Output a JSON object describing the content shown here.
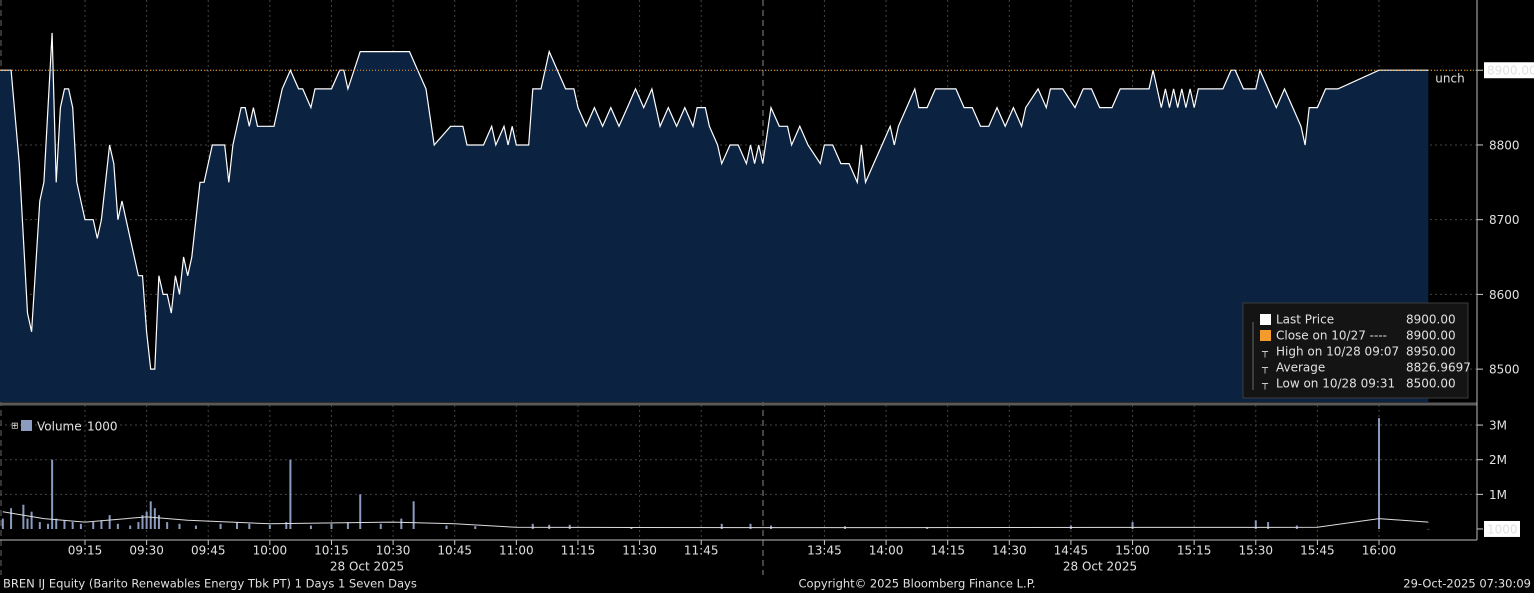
{
  "chart_data": [
    {
      "type": "area",
      "x": [
        "08:54",
        "08:57",
        "08:59",
        "09:01",
        "09:02",
        "09:04",
        "09:05",
        "09:07",
        "09:08",
        "09:09",
        "09:10",
        "09:11",
        "09:12",
        "09:13",
        "09:14",
        "09:15",
        "09:17",
        "09:18",
        "09:19",
        "09:21",
        "09:22",
        "09:23",
        "09:24",
        "09:25",
        "09:27",
        "09:28",
        "09:29",
        "09:30",
        "09:31",
        "09:32",
        "09:33",
        "09:34",
        "09:35",
        "09:36",
        "09:37",
        "09:38",
        "09:39",
        "09:40",
        "09:41",
        "09:42",
        "09:43",
        "09:44",
        "09:45",
        "09:46",
        "09:47",
        "09:48",
        "09:49",
        "09:50",
        "09:51",
        "09:52",
        "09:53",
        "09:54",
        "09:55",
        "09:56",
        "09:57",
        "09:58",
        "10:01",
        "10:03",
        "10:05",
        "10:07",
        "10:08",
        "10:10",
        "10:11",
        "10:15",
        "10:17",
        "10:18",
        "10:19",
        "10:22",
        "10:34",
        "10:36",
        "10:38",
        "10:40",
        "10:44",
        "10:47",
        "10:48",
        "10:52",
        "10:54",
        "10:55",
        "10:57",
        "10:58",
        "10:59",
        "11:00",
        "11:03",
        "11:04",
        "11:06",
        "11:08",
        "11:10",
        "11:12",
        "11:14",
        "11:15",
        "11:17",
        "11:19",
        "11:21",
        "11:23",
        "11:25",
        "11:27",
        "11:29",
        "11:31",
        "11:33",
        "11:35",
        "11:37",
        "11:39",
        "11:41",
        "11:43",
        "11:44",
        "11:46",
        "11:47",
        "11:49",
        "11:50",
        "11:52",
        "11:54",
        "11:56",
        "11:57",
        "11:58",
        "11:59",
        "13:30",
        "13:32",
        "13:34",
        "13:36",
        "13:37",
        "13:39",
        "13:41",
        "13:44",
        "13:45",
        "13:47",
        "13:49",
        "13:51",
        "13:53",
        "13:54",
        "13:55",
        "13:57",
        "13:59",
        "14:01",
        "14:02",
        "14:03",
        "14:05",
        "14:07",
        "14:08",
        "14:10",
        "14:12",
        "14:17",
        "14:19",
        "14:21",
        "14:23",
        "14:25",
        "14:27",
        "14:29",
        "14:31",
        "14:33",
        "14:34",
        "14:37",
        "14:39",
        "14:40",
        "14:43",
        "14:46",
        "14:48",
        "14:50",
        "14:52",
        "14:55",
        "14:57",
        "15:00",
        "15:04",
        "15:05",
        "15:07",
        "15:08",
        "15:09",
        "15:10",
        "15:11",
        "15:12",
        "15:13",
        "15:14",
        "15:15",
        "15:16",
        "15:22",
        "15:24",
        "15:25",
        "15:27",
        "15:30",
        "15:31",
        "15:33",
        "15:35",
        "15:37",
        "15:39",
        "15:41",
        "15:42",
        "15:43",
        "15:45",
        "15:47",
        "15:50",
        "16:00",
        "16:12"
      ],
      "series": [
        {
          "name": "Last Price",
          "color": "#ffffff",
          "fill": "#0c2241",
          "values": [
            8900,
            8900,
            8775,
            8575,
            8550,
            8725,
            8750,
            8950,
            8750,
            8850,
            8875,
            8875,
            8850,
            8750,
            8725,
            8700,
            8700,
            8675,
            8700,
            8800,
            8775,
            8700,
            8725,
            8700,
            8650,
            8625,
            8625,
            8550,
            8500,
            8500,
            8625,
            8600,
            8600,
            8575,
            8625,
            8600,
            8650,
            8625,
            8650,
            8700,
            8750,
            8750,
            8775,
            8800,
            8800,
            8800,
            8800,
            8750,
            8800,
            8825,
            8850,
            8850,
            8825,
            8850,
            8825,
            8825,
            8825,
            8875,
            8900,
            8875,
            8875,
            8850,
            8875,
            8875,
            8900,
            8900,
            8875,
            8925,
            8925,
            8900,
            8875,
            8800,
            8825,
            8825,
            8800,
            8800,
            8825,
            8800,
            8825,
            8800,
            8825,
            8800,
            8800,
            8875,
            8875,
            8925,
            8900,
            8875,
            8875,
            8850,
            8825,
            8850,
            8825,
            8850,
            8825,
            8850,
            8875,
            8850,
            8875,
            8825,
            8850,
            8825,
            8850,
            8825,
            8850,
            8850,
            8825,
            8800,
            8775,
            8800,
            8800,
            8775,
            8800,
            8775,
            8800,
            8775,
            8850,
            8825,
            8825,
            8800,
            8825,
            8800,
            8775,
            8800,
            8800,
            8775,
            8775,
            8750,
            8800,
            8750,
            8775,
            8800,
            8825,
            8800,
            8825,
            8850,
            8875,
            8850,
            8850,
            8875,
            8875,
            8850,
            8850,
            8825,
            8825,
            8850,
            8825,
            8850,
            8825,
            8850,
            8875,
            8850,
            8875,
            8875,
            8850,
            8875,
            8875,
            8850,
            8850,
            8875,
            8875,
            8875,
            8900,
            8850,
            8875,
            8850,
            8875,
            8850,
            8875,
            8850,
            8875,
            8850,
            8875,
            8875,
            8900,
            8900,
            8875,
            8875,
            8900,
            8875,
            8850,
            8875,
            8850,
            8825,
            8800,
            8850,
            8850,
            8875,
            8875,
            8900,
            8900
          ]
        }
      ],
      "ylim": [
        8456,
        8994
      ],
      "yticks": [
        {
          "value": 8900,
          "label": "8900.00"
        },
        8800,
        8700,
        8600,
        8500
      ],
      "prev_close": 8900,
      "prev_close_label": "unch",
      "prev_close_color": "#f39c2c",
      "xticks": [
        "09:15",
        "09:30",
        "09:45",
        "10:00",
        "10:15",
        "10:30",
        "10:45",
        "11:00",
        "11:15",
        "11:30",
        "11:45",
        "13:45",
        "14:00",
        "14:15",
        "14:30",
        "14:45",
        "15:00",
        "15:15",
        "15:30",
        "15:45",
        "16:00"
      ],
      "date_labels": [
        "28 Oct 2025",
        "28 Oct 2025"
      ],
      "grid": true,
      "legend_items": [
        {
          "label": "Last Price",
          "value": "8900.00",
          "color": "#ffffff"
        },
        {
          "label": "Close on 10/27 ----",
          "value": "8900.00",
          "color": "#f39c2c"
        },
        {
          "label": "High on 10/28 09:07",
          "value": "8950.00"
        },
        {
          "label": "Average",
          "value": "8826.9697"
        },
        {
          "label": "Low on 10/28 09:31",
          "value": "8500.00"
        }
      ]
    },
    {
      "type": "bar",
      "title": "Volume",
      "legend_value": 1000,
      "x": [
        "08:55",
        "08:57",
        "09:00",
        "09:01",
        "09:02",
        "09:04",
        "09:06",
        "09:07",
        "09:08",
        "09:10",
        "09:12",
        "09:14",
        "09:17",
        "09:19",
        "09:21",
        "09:23",
        "09:26",
        "09:28",
        "09:29",
        "09:30",
        "09:31",
        "09:32",
        "09:33",
        "09:35",
        "09:38",
        "09:42",
        "09:48",
        "09:52",
        "09:55",
        "10:00",
        "10:04",
        "10:05",
        "10:10",
        "10:15",
        "10:19",
        "10:22",
        "10:27",
        "10:32",
        "10:35",
        "10:43",
        "10:50",
        "11:04",
        "11:08",
        "11:13",
        "11:28",
        "11:50",
        "11:57",
        "13:32",
        "13:50",
        "14:10",
        "14:45",
        "15:00",
        "15:30",
        "15:33",
        "15:40",
        "16:00",
        "16:12"
      ],
      "series": [
        {
          "name": "Volume",
          "color": "#8a9bbf",
          "values": [
            300000,
            600000,
            700000,
            300000,
            500000,
            200000,
            150000,
            2000000,
            300000,
            250000,
            200000,
            150000,
            200000,
            250000,
            400000,
            150000,
            100000,
            200000,
            400000,
            500000,
            800000,
            600000,
            400000,
            200000,
            150000,
            100000,
            150000,
            200000,
            150000,
            120000,
            200000,
            2000000,
            100000,
            150000,
            200000,
            1000000,
            150000,
            300000,
            800000,
            100000,
            80000,
            150000,
            120000,
            120000,
            50000,
            150000,
            150000,
            100000,
            80000,
            60000,
            100000,
            200000,
            250000,
            200000,
            100000,
            3200000,
            1000
          ]
        }
      ],
      "average_x": [
        "08:55",
        "09:05",
        "09:15",
        "09:30",
        "09:40",
        "10:00",
        "10:30",
        "10:45",
        "11:00",
        "12:00",
        "14:00",
        "15:45",
        "16:00",
        "16:12"
      ],
      "average_values": [
        500000,
        300000,
        200000,
        350000,
        250000,
        150000,
        200000,
        150000,
        50000,
        40000,
        40000,
        50000,
        300000,
        200000
      ],
      "ylim": [
        0,
        3550000
      ],
      "yticks": [
        {
          "value": 3000000,
          "label": "3M"
        },
        {
          "value": 2000000,
          "label": "2M"
        },
        {
          "value": 1000000,
          "label": "1M"
        },
        1000
      ]
    }
  ],
  "footer": {
    "security": "BREN IJ Equity (Barito Renewables Energy Tbk PT) 1 Days 1 Seven Days",
    "copyright": "Copyright© 2025 Bloomberg Finance L.P.",
    "timestamp": "29-Oct-2025 07:30:09"
  }
}
